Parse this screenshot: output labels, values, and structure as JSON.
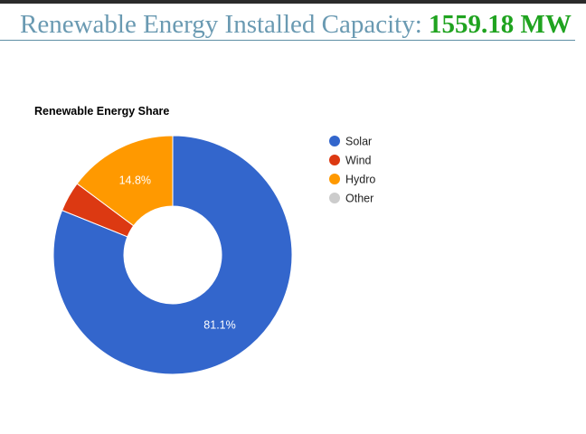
{
  "header": {
    "label": "Renewable Energy Installed Capacity:",
    "value": "1559.18 MW"
  },
  "chart_data": {
    "type": "pie",
    "donut": true,
    "title": "Renewable Energy Share",
    "legend_position": "right",
    "slices": [
      {
        "label": "Solar",
        "value": 81.1,
        "display": "81.1%",
        "color": "#3366cc"
      },
      {
        "label": "Wind",
        "value": 4.1,
        "display": "",
        "color": "#dc3912"
      },
      {
        "label": "Hydro",
        "value": 14.8,
        "display": "14.8%",
        "color": "#ff9900"
      },
      {
        "label": "Other",
        "value": 0.0,
        "display": "",
        "color": "#cccccc"
      }
    ]
  }
}
